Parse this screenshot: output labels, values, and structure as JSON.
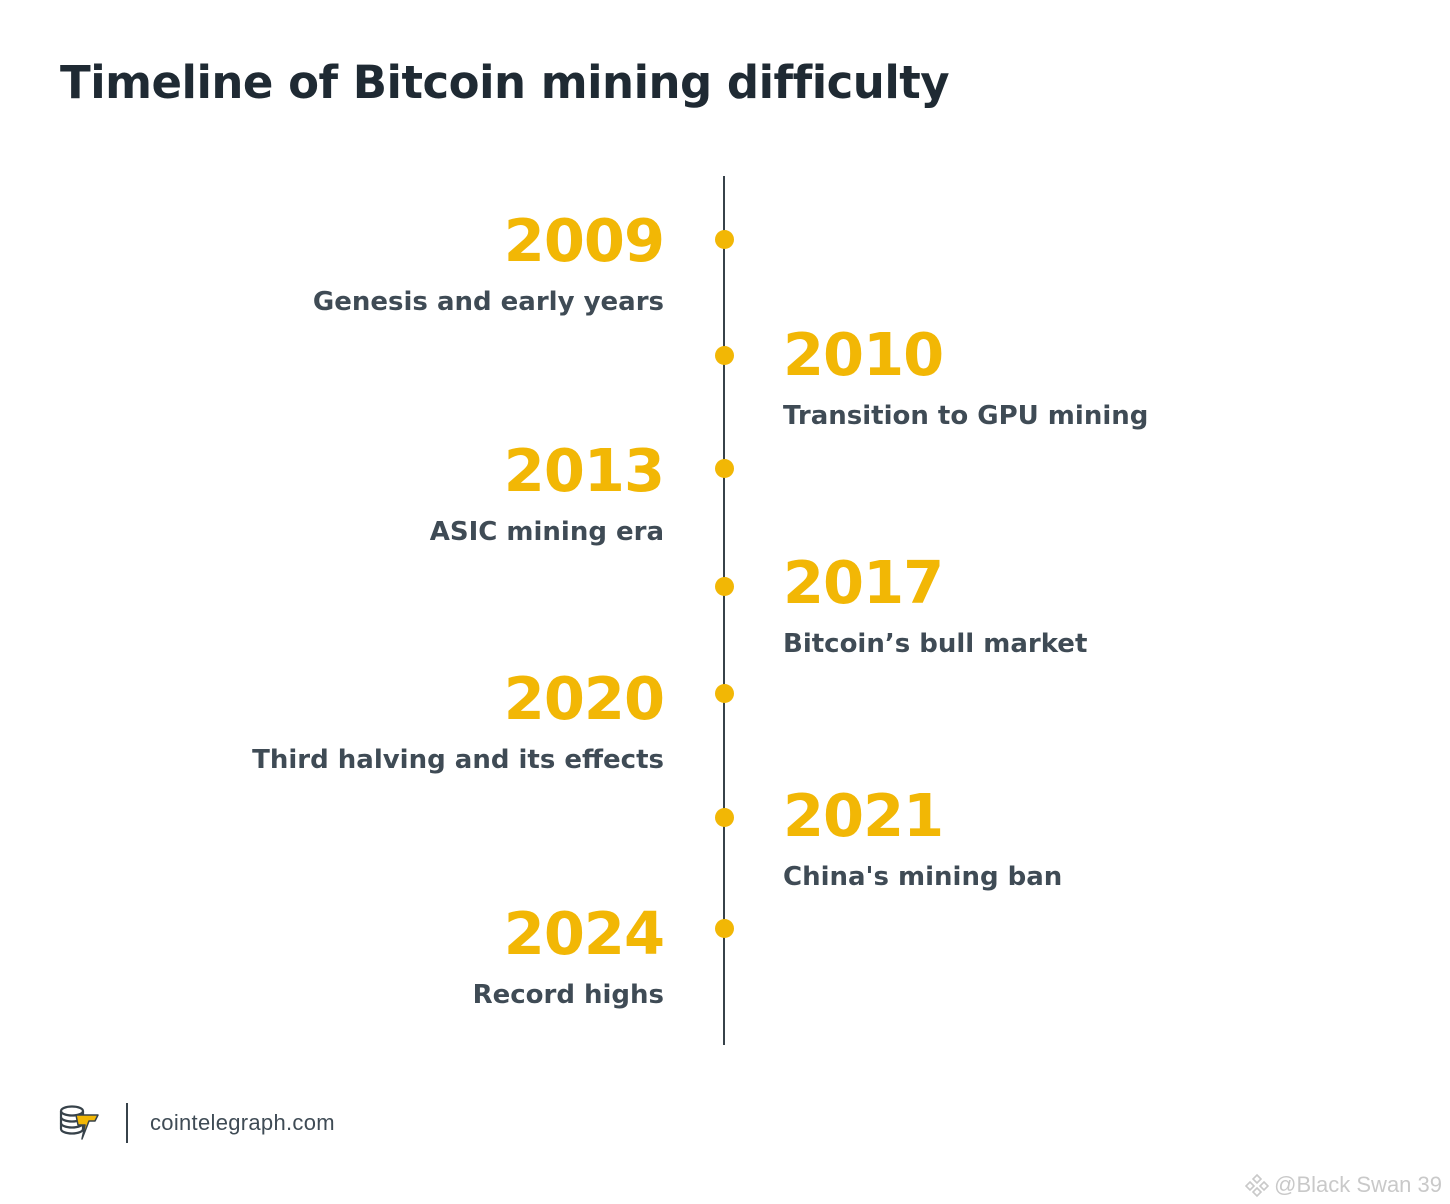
{
  "title": "Timeline of Bitcoin mining difficulty",
  "colors": {
    "accent": "#f2b705",
    "text": "#3f4b55",
    "title": "#1f2a33",
    "line": "#37424a"
  },
  "events": [
    {
      "year": "2009",
      "label": "Genesis and early years",
      "side": "left"
    },
    {
      "year": "2010",
      "label": "Transition to GPU mining",
      "side": "right"
    },
    {
      "year": "2013",
      "label": "ASIC mining era",
      "side": "left"
    },
    {
      "year": "2017",
      "label": "Bitcoin’s bull market",
      "side": "right"
    },
    {
      "year": "2020",
      "label": "Third halving and its effects",
      "side": "left"
    },
    {
      "year": "2021",
      "label": "China's mining ban",
      "side": "right"
    },
    {
      "year": "2024",
      "label": "Record highs",
      "side": "left"
    }
  ],
  "footer": {
    "logo_icon": "cointelegraph-logo-icon",
    "site": "cointelegraph.com"
  },
  "watermark": {
    "icon": "binance-square-icon",
    "text": "@Black Swan 39"
  }
}
